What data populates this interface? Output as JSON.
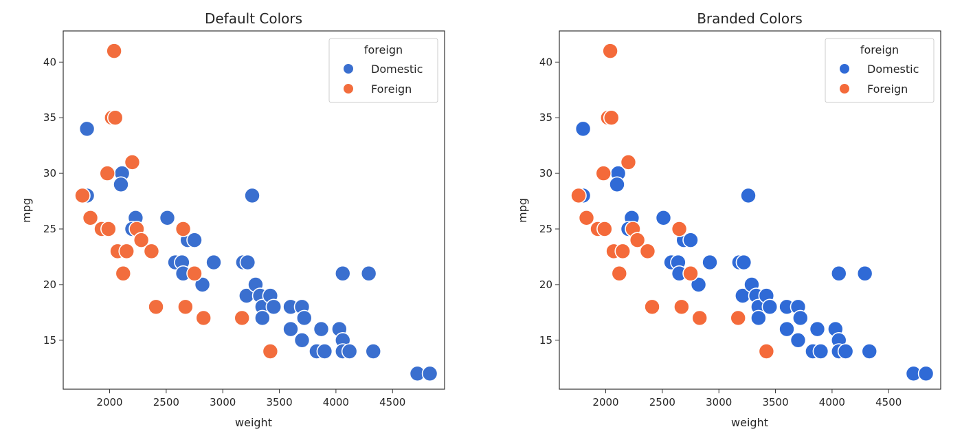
{
  "chart_data": [
    {
      "type": "scatter",
      "title": "Default Colors",
      "xlabel": "weight",
      "ylabel": "mpg",
      "xlim": [
        1590,
        4960
      ],
      "ylim": [
        10.6,
        42.8
      ],
      "xticks": [
        2000,
        2500,
        3000,
        3500,
        4000,
        4500
      ],
      "yticks": [
        15,
        20,
        25,
        30,
        35,
        40
      ],
      "grid": false,
      "legend": {
        "title": "foreign",
        "placement": "top-right"
      },
      "series": [
        {
          "name": "Domestic",
          "color": "#3a6fcf",
          "points": [
            [
              1800,
              34
            ],
            [
              1800,
              28
            ],
            [
              2110,
              30
            ],
            [
              2100,
              29
            ],
            [
              2230,
              26
            ],
            [
              2200,
              25
            ],
            [
              2510,
              26
            ],
            [
              2580,
              22
            ],
            [
              2640,
              22
            ],
            [
              2650,
              21
            ],
            [
              2690,
              24
            ],
            [
              2750,
              24
            ],
            [
              2820,
              20
            ],
            [
              2920,
              22
            ],
            [
              3180,
              22
            ],
            [
              3220,
              22
            ],
            [
              3260,
              28
            ],
            [
              3210,
              19
            ],
            [
              3290,
              20
            ],
            [
              3330,
              19
            ],
            [
              3350,
              18
            ],
            [
              3350,
              17
            ],
            [
              3420,
              19
            ],
            [
              3450,
              18
            ],
            [
              3600,
              18
            ],
            [
              3600,
              16
            ],
            [
              3700,
              18
            ],
            [
              3720,
              17
            ],
            [
              3700,
              15
            ],
            [
              3830,
              14
            ],
            [
              3870,
              16
            ],
            [
              3900,
              14
            ],
            [
              4030,
              16
            ],
            [
              4060,
              21
            ],
            [
              4060,
              15
            ],
            [
              4060,
              14
            ],
            [
              4120,
              14
            ],
            [
              4290,
              21
            ],
            [
              4330,
              14
            ],
            [
              4720,
              12
            ],
            [
              4830,
              12
            ]
          ]
        },
        {
          "name": "Foreign",
          "color": "#f26d3d",
          "points": [
            [
              2040,
              41
            ],
            [
              2020,
              35
            ],
            [
              2050,
              35
            ],
            [
              1980,
              30
            ],
            [
              2200,
              31
            ],
            [
              1760,
              28
            ],
            [
              1830,
              26
            ],
            [
              1930,
              25
            ],
            [
              1990,
              25
            ],
            [
              2070,
              23
            ],
            [
              2150,
              23
            ],
            [
              2240,
              25
            ],
            [
              2280,
              24
            ],
            [
              2120,
              21
            ],
            [
              2370,
              23
            ],
            [
              2650,
              25
            ],
            [
              2410,
              18
            ],
            [
              2670,
              18
            ],
            [
              2750,
              21
            ],
            [
              2830,
              17
            ],
            [
              3170,
              17
            ],
            [
              3420,
              14
            ]
          ]
        }
      ]
    },
    {
      "type": "scatter",
      "title": "Branded Colors",
      "xlabel": "weight",
      "ylabel": "mpg",
      "xlim": [
        1590,
        4960
      ],
      "ylim": [
        10.6,
        42.8
      ],
      "xticks": [
        2000,
        2500,
        3000,
        3500,
        4000,
        4500
      ],
      "yticks": [
        15,
        20,
        25,
        30,
        35,
        40
      ],
      "grid": false,
      "legend": {
        "title": "foreign",
        "placement": "top-right"
      },
      "series": [
        {
          "name": "Domestic",
          "color": "#2f6ad6",
          "points": [
            [
              1800,
              34
            ],
            [
              1800,
              28
            ],
            [
              2110,
              30
            ],
            [
              2100,
              29
            ],
            [
              2230,
              26
            ],
            [
              2200,
              25
            ],
            [
              2510,
              26
            ],
            [
              2580,
              22
            ],
            [
              2640,
              22
            ],
            [
              2650,
              21
            ],
            [
              2690,
              24
            ],
            [
              2750,
              24
            ],
            [
              2820,
              20
            ],
            [
              2920,
              22
            ],
            [
              3180,
              22
            ],
            [
              3220,
              22
            ],
            [
              3260,
              28
            ],
            [
              3210,
              19
            ],
            [
              3290,
              20
            ],
            [
              3330,
              19
            ],
            [
              3350,
              18
            ],
            [
              3350,
              17
            ],
            [
              3420,
              19
            ],
            [
              3450,
              18
            ],
            [
              3600,
              18
            ],
            [
              3600,
              16
            ],
            [
              3700,
              18
            ],
            [
              3720,
              17
            ],
            [
              3700,
              15
            ],
            [
              3830,
              14
            ],
            [
              3870,
              16
            ],
            [
              3900,
              14
            ],
            [
              4030,
              16
            ],
            [
              4060,
              21
            ],
            [
              4060,
              15
            ],
            [
              4060,
              14
            ],
            [
              4120,
              14
            ],
            [
              4290,
              21
            ],
            [
              4330,
              14
            ],
            [
              4720,
              12
            ],
            [
              4830,
              12
            ]
          ]
        },
        {
          "name": "Foreign",
          "color": "#f46a3a",
          "points": [
            [
              2040,
              41
            ],
            [
              2020,
              35
            ],
            [
              2050,
              35
            ],
            [
              1980,
              30
            ],
            [
              2200,
              31
            ],
            [
              1760,
              28
            ],
            [
              1830,
              26
            ],
            [
              1930,
              25
            ],
            [
              1990,
              25
            ],
            [
              2070,
              23
            ],
            [
              2150,
              23
            ],
            [
              2240,
              25
            ],
            [
              2280,
              24
            ],
            [
              2120,
              21
            ],
            [
              2370,
              23
            ],
            [
              2650,
              25
            ],
            [
              2410,
              18
            ],
            [
              2670,
              18
            ],
            [
              2750,
              21
            ],
            [
              2830,
              17
            ],
            [
              3170,
              17
            ],
            [
              3420,
              14
            ]
          ]
        }
      ]
    }
  ]
}
